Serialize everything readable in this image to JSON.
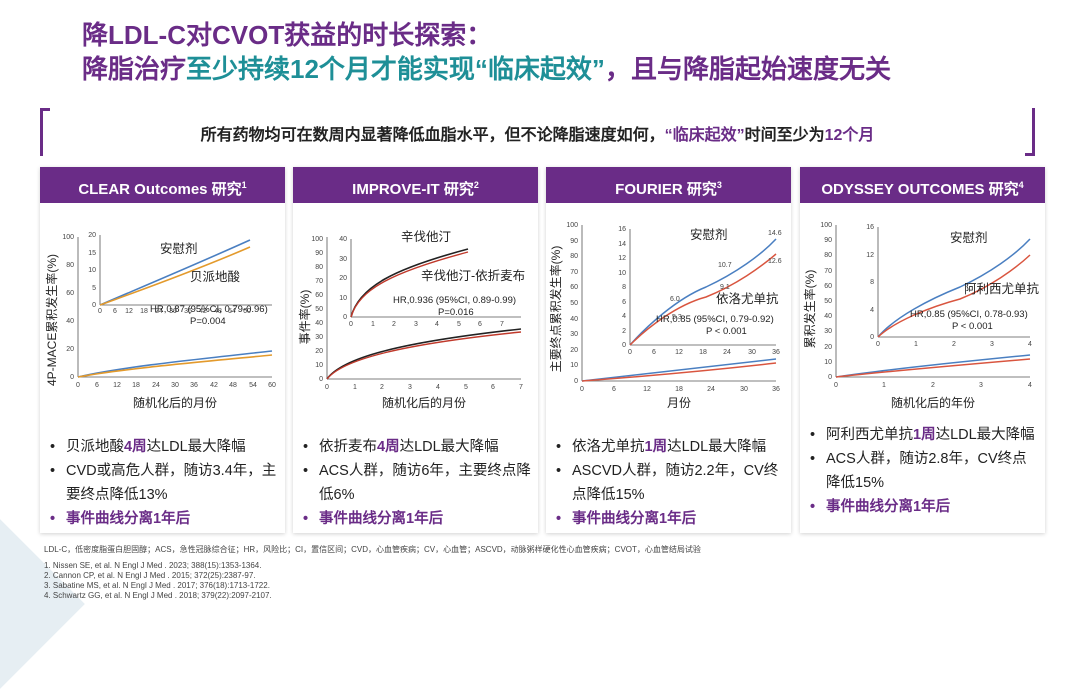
{
  "title": {
    "line1": "降LDL-C对CVOT获益的时长探索：",
    "line2_a": "降脂治疗",
    "line2_b": "至少持续12个月才能实现“临床起效”",
    "line2_c": "，且与降脂起始速度无关"
  },
  "callout": {
    "text_a": "所有药物均可在数周内显著降低血脂水平，但不论降脂速度如何，",
    "text_b": "“临床起效”",
    "text_c": "时间至少为",
    "text_d": "12个月"
  },
  "panels": [
    {
      "header": "CLEAR Outcomes 研究",
      "ref": "1",
      "ylabel": "4P-MACE累积发生率(%)",
      "xlabel": "随机化后的月份",
      "series_a": "安慰剂",
      "series_b": "贝派地酸",
      "hr": "HR,0.87 (95%CI, 0.79-0.96)",
      "p": "P=0.004",
      "bullets": [
        {
          "a": "贝派地酸",
          "b": "4周",
          "c": "达LDL最大降幅"
        },
        {
          "a": "CVD或高危人群，随访3.4年，主要终点降低13%",
          "b": "",
          "c": ""
        }
      ],
      "last": "事件曲线分离1年后"
    },
    {
      "header": "IMPROVE-IT 研究",
      "ref": "2",
      "ylabel": "事件率(%)",
      "xlabel": "随机化后的月份",
      "series_a": "辛伐他汀",
      "series_b": "辛伐他汀-依折麦布",
      "hr": "HR,0.936 (95%CI, 0.89-0.99)",
      "p": "P=0.016",
      "bullets": [
        {
          "a": "依折麦布",
          "b": "4周",
          "c": "达LDL最大降幅"
        },
        {
          "a": "ACS人群，随访6年，主要终点降低6%",
          "b": "",
          "c": ""
        }
      ],
      "last": "事件曲线分离1年后"
    },
    {
      "header": "FOURIER 研究",
      "ref": "3",
      "ylabel": "主要终点累积发生率(%)",
      "xlabel": "月份",
      "series_a": "安慰剂",
      "series_b": "依洛尤单抗",
      "hr": "HR,0.85 (95%CI, 0.79-0.92)",
      "p": "P < 0.001",
      "bullets": [
        {
          "a": "依洛尤单抗",
          "b": "1周",
          "c": "达LDL最大降幅"
        },
        {
          "a": "ASCVD人群，随访2.2年，CV终点降低15%",
          "b": "",
          "c": ""
        }
      ],
      "last": "事件曲线分离1年后"
    },
    {
      "header": "ODYSSEY OUTCOMES 研究",
      "ref": "4",
      "ylabel": "累积发生率(%)",
      "xlabel": "随机化后的年份",
      "series_a": "安慰剂",
      "series_b": "阿利西尤单抗",
      "hr": "HR,0.85 (95%CI, 0.78-0.93)",
      "p": "P < 0.001",
      "bullets": [
        {
          "a": "阿利西尤单抗",
          "b": "1周",
          "c": "达LDL最大降幅"
        },
        {
          "a": "ACS人群，随访2.8年，CV终点降低15%",
          "b": "",
          "c": ""
        }
      ],
      "last": "事件曲线分离1年后"
    }
  ],
  "chart_data": [
    {
      "type": "line",
      "x_ticks_main": [
        "0",
        "6",
        "12",
        "18",
        "24",
        "30",
        "36",
        "42",
        "48",
        "54",
        "60"
      ],
      "y_ticks_main": [
        "0",
        "20",
        "40",
        "60",
        "80",
        "100"
      ],
      "x_ticks_inset": [
        "0",
        "6",
        "12",
        "18",
        "24",
        "30",
        "36",
        "42",
        "48",
        "54",
        "60"
      ],
      "y_ticks_inset": [
        "0",
        "5",
        "10",
        "15",
        "20"
      ]
    },
    {
      "type": "line",
      "x_ticks_main": [
        "0",
        "1",
        "2",
        "3",
        "4",
        "5",
        "6",
        "7"
      ],
      "y_ticks_main": [
        "0",
        "10",
        "20",
        "30",
        "40",
        "50",
        "60",
        "70",
        "80",
        "90",
        "100"
      ],
      "x_ticks_inset": [
        "0",
        "1",
        "2",
        "3",
        "4",
        "5",
        "6",
        "7"
      ],
      "y_ticks_inset": [
        "0",
        "10",
        "20",
        "30",
        "40"
      ]
    },
    {
      "type": "line",
      "x_ticks_main": [
        "0",
        "6",
        "12",
        "18",
        "24",
        "30",
        "36"
      ],
      "y_ticks_main": [
        "0",
        "10",
        "20",
        "30",
        "40",
        "50",
        "60",
        "70",
        "80",
        "90",
        "100"
      ],
      "x_ticks_inset": [
        "0",
        "6",
        "12",
        "18",
        "24",
        "30",
        "36"
      ],
      "y_ticks_inset": [
        "0",
        "2",
        "4",
        "6",
        "8",
        "10",
        "12",
        "14",
        "16"
      ],
      "annotations": [
        "14.6",
        "12.6",
        "10.7",
        "9.1",
        "6.0",
        "5.3"
      ]
    },
    {
      "type": "line",
      "x_ticks_main": [
        "0",
        "1",
        "2",
        "3",
        "4"
      ],
      "y_ticks_main": [
        "0",
        "10",
        "20",
        "30",
        "40",
        "50",
        "60",
        "70",
        "80",
        "90",
        "100"
      ],
      "x_ticks_inset": [
        "0",
        "1",
        "2",
        "3",
        "4"
      ],
      "y_ticks_inset": [
        "0",
        "4",
        "8",
        "12",
        "16"
      ]
    }
  ],
  "footnotes": {
    "abbr": "LDL-C，低密度脂蛋白胆固醇；ACS，急性冠脉综合征；HR，风险比；CI，置信区间；CVD，心血管疾病；CV，心血管；ASCVD，动脉粥样硬化性心血管疾病；CVOT，心血管结局试验",
    "refs": [
      "1. Nissen SE, et al.  N Engl J Med . 2023; 388(15):1353-1364.",
      "2. Cannon CP, et al.  N Engl J Med . 2015; 372(25):2387-97.",
      "3. Sabatine MS, et al.  N Engl J Med . 2017; 376(18):1713-1722.",
      "4. Schwartz GG, et al.  N Engl J Med . 2018; 379(22):2097-2107."
    ]
  }
}
